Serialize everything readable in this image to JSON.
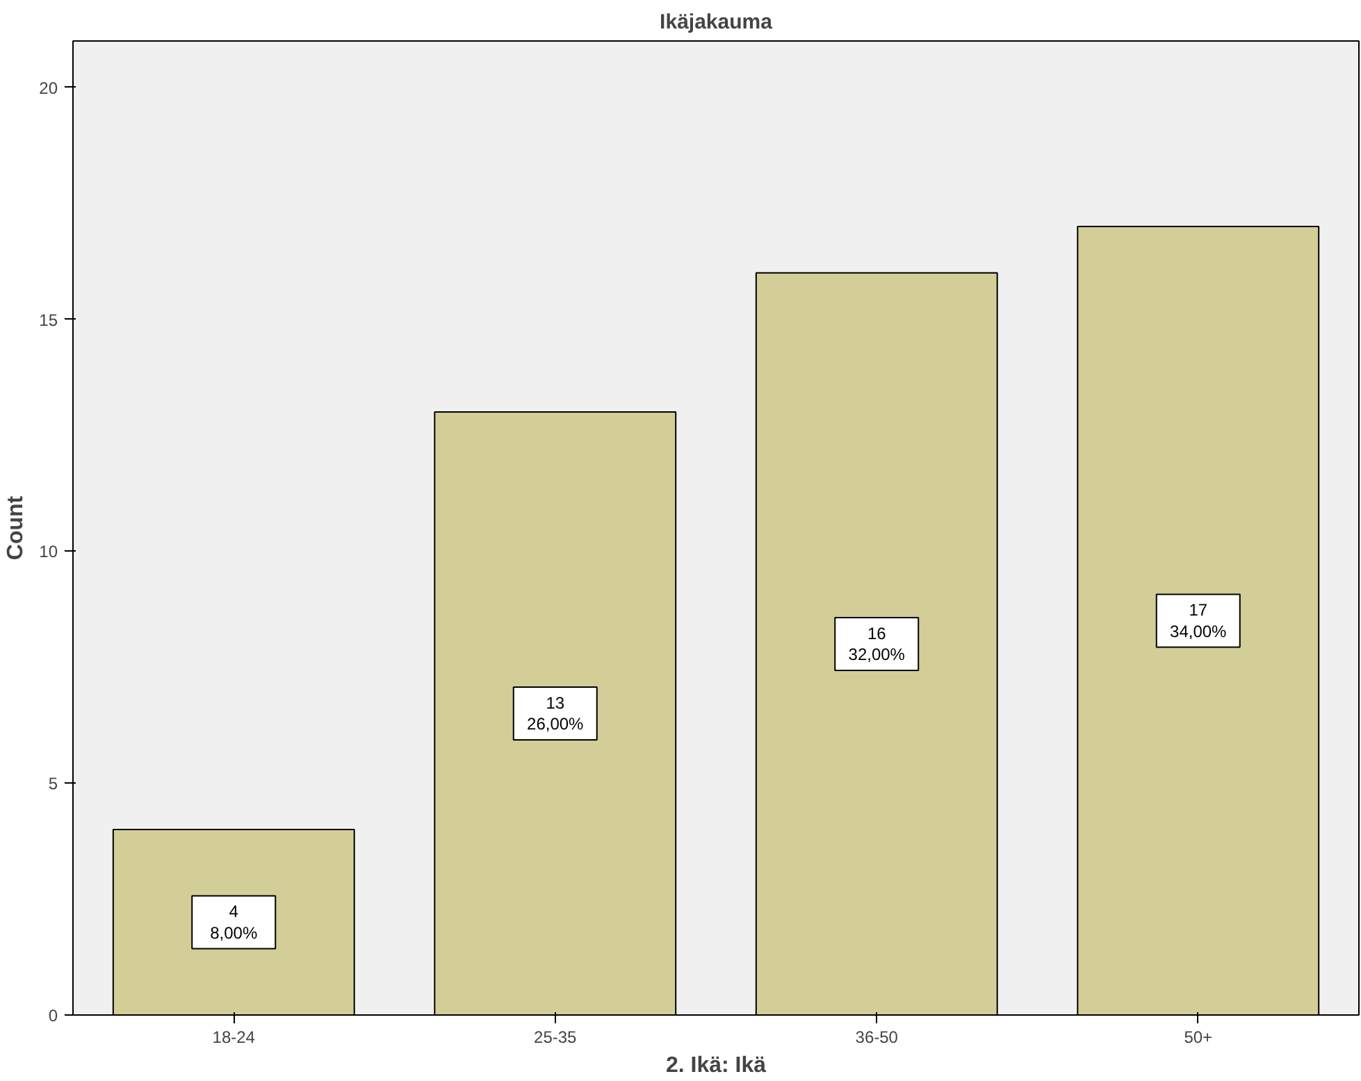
{
  "chart_data": {
    "type": "bar",
    "title": "Ikäjakauma",
    "xlabel": "2. Ikä: Ikä",
    "ylabel": "Count",
    "categories": [
      "18-24",
      "25-35",
      "36-50",
      "50+"
    ],
    "values": [
      4,
      13,
      16,
      17
    ],
    "value_labels": [
      "4\n8,00%",
      "13\n26,00%",
      "16\n32,00%",
      "17\n34,00%"
    ],
    "color": "#d3ce97",
    "ylim": [
      0,
      21
    ],
    "yticks": [
      0,
      5,
      10,
      15,
      20
    ],
    "grid": false
  }
}
